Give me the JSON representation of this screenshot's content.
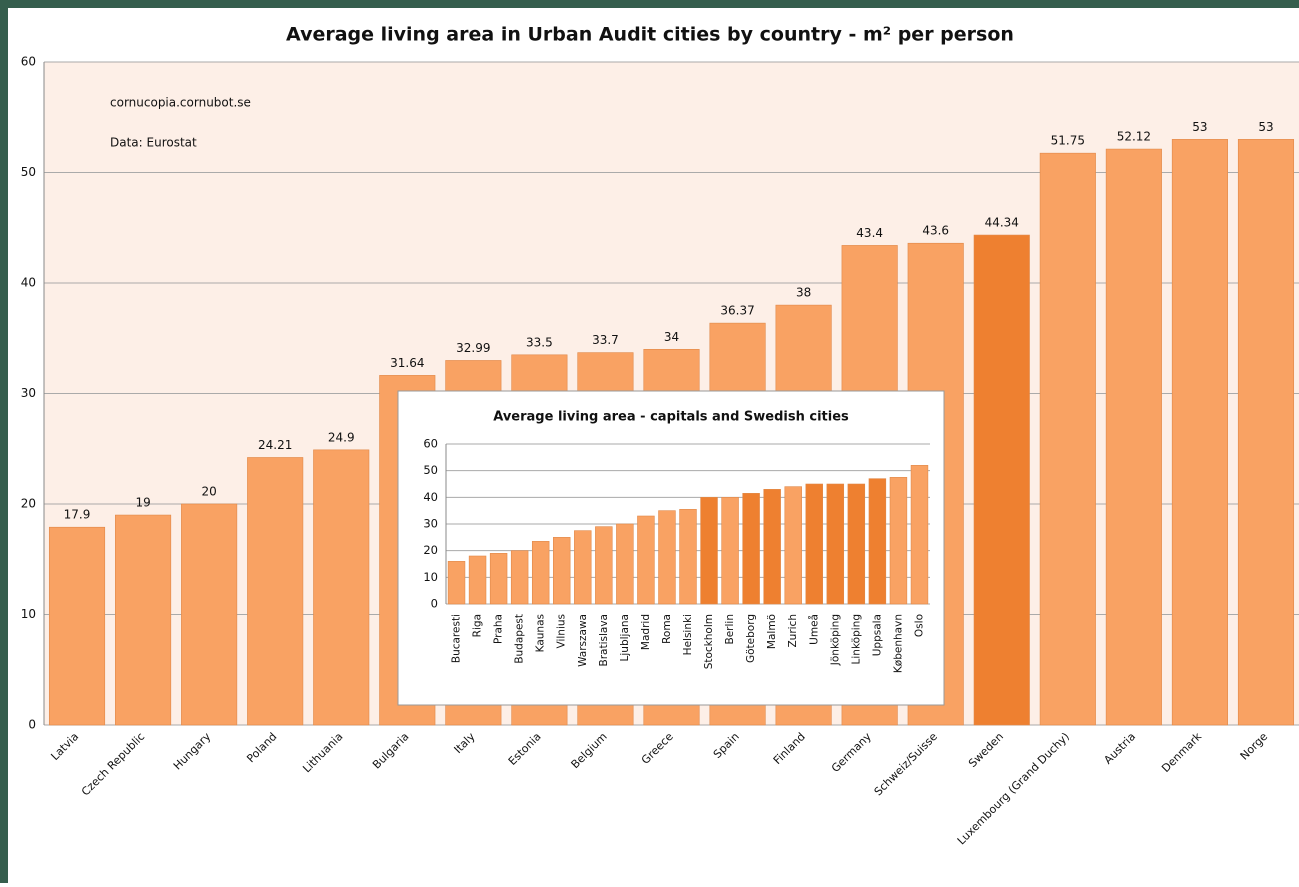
{
  "chart_data": [
    {
      "type": "bar",
      "title": "Average living area in Urban Audit cities by country - m² per person",
      "annotations": [
        "cornucopia.cornubot.se",
        "Data: Eurostat"
      ],
      "categories": [
        "Latvia",
        "Czech Republic",
        "Hungary",
        "Poland",
        "Lithuania",
        "Bulgaria",
        "Italy",
        "Estonia",
        "Belgium",
        "Greece",
        "Spain",
        "Finland",
        "Germany",
        "Schweiz/Suisse",
        "Sweden",
        "Luxembourg (Grand Duchy)",
        "Austria",
        "Denmark",
        "Norge"
      ],
      "values": [
        17.9,
        19,
        20,
        24.21,
        24.9,
        31.64,
        32.99,
        33.5,
        33.7,
        34,
        36.37,
        38,
        43.4,
        43.6,
        44.34,
        51.75,
        52.12,
        53,
        53
      ],
      "colors": [
        "#f9a263",
        "#f9a263",
        "#f9a263",
        "#f9a263",
        "#f9a263",
        "#f9a263",
        "#f9a263",
        "#f9a263",
        "#f9a263",
        "#f9a263",
        "#f9a263",
        "#f9a263",
        "#f9a263",
        "#f9a263",
        "#ee8030",
        "#f9a263",
        "#f9a263",
        "#f9a263",
        "#f9a263"
      ],
      "ylim": [
        0,
        60
      ],
      "yticks": [
        0,
        10,
        20,
        30,
        40,
        50,
        60
      ],
      "grid": true
    },
    {
      "type": "bar",
      "title": "Average living area - capitals and Swedish cities",
      "categories": [
        "Bucaresti",
        "Riga",
        "Praha",
        "Budapest",
        "Kaunas",
        "Vilnius",
        "Warszawa",
        "Bratislava",
        "Ljubljana",
        "Madrid",
        "Roma",
        "Helsinki",
        "Stockholm",
        "Berlin",
        "Göteborg",
        "Malmö",
        "Zurich",
        "Umeå",
        "Jönköping",
        "Linköping",
        "Uppsala",
        "København",
        "Oslo"
      ],
      "values": [
        16,
        18,
        19,
        20,
        23.5,
        25,
        27.5,
        29,
        30,
        33,
        35,
        35.5,
        40,
        40,
        41.5,
        43,
        44,
        45,
        45,
        45,
        47,
        47.5,
        52
      ],
      "colors": [
        "#f9a263",
        "#f9a263",
        "#f9a263",
        "#f9a263",
        "#f9a263",
        "#f9a263",
        "#f9a263",
        "#f9a263",
        "#f9a263",
        "#f9a263",
        "#f9a263",
        "#f9a263",
        "#ee8030",
        "#f9a263",
        "#ee8030",
        "#ee8030",
        "#f9a263",
        "#ee8030",
        "#ee8030",
        "#ee8030",
        "#ee8030",
        "#f9a263",
        "#f9a263"
      ],
      "ylim": [
        0,
        60
      ],
      "yticks": [
        0,
        10,
        20,
        30,
        40,
        50,
        60
      ],
      "grid": true
    }
  ]
}
